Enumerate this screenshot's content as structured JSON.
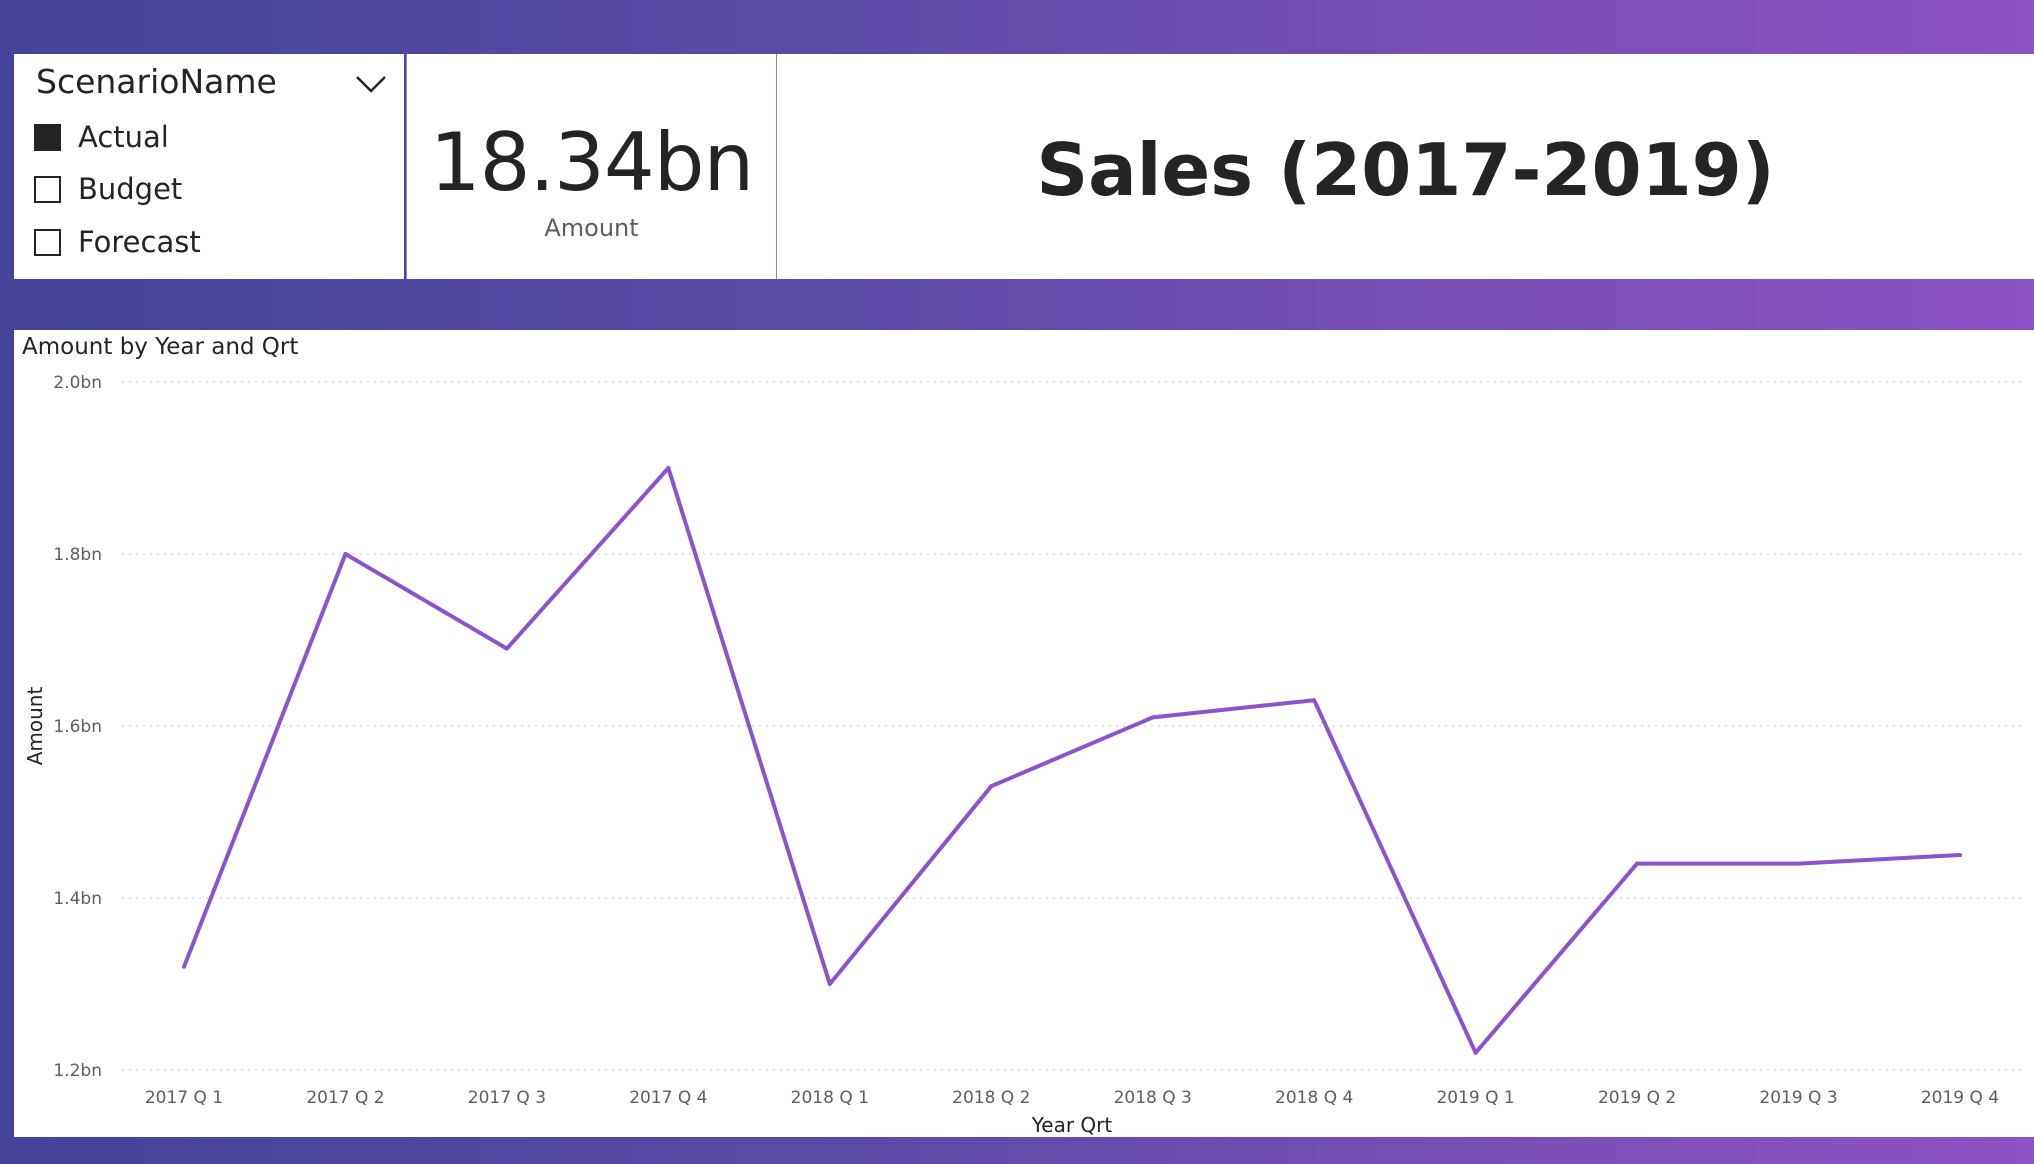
{
  "slicer": {
    "title": "ScenarioName",
    "icon": "chevron-down-icon",
    "items": [
      {
        "label": "Actual",
        "checked": true
      },
      {
        "label": "Budget",
        "checked": false
      },
      {
        "label": "Forecast",
        "checked": false
      }
    ]
  },
  "card": {
    "value": "18.34bn",
    "label": "Amount"
  },
  "header": {
    "title": "Sales (2017-2019)"
  },
  "colors": {
    "line": "#8a55cc",
    "background_start": "#45439a",
    "background_end": "#8d52c6",
    "text": "#252423",
    "gridline": "#d9d9d9"
  },
  "chart_data": {
    "type": "line",
    "title": "Amount by Year and Qrt",
    "xlabel": "Year Qrt",
    "ylabel": "Amount",
    "categories": [
      "2017 Q 1",
      "2017 Q 2",
      "2017 Q 3",
      "2017 Q 4",
      "2018 Q 1",
      "2018 Q 2",
      "2018 Q 3",
      "2018 Q 4",
      "2019 Q 1",
      "2019 Q 2",
      "2019 Q 3",
      "2019 Q 4"
    ],
    "series": [
      {
        "values": [
          1.32,
          1.8,
          1.69,
          1.9,
          1.3,
          1.53,
          1.61,
          1.63,
          1.22,
          1.44,
          1.44,
          1.45
        ]
      }
    ],
    "ylim": [
      1.2,
      2.0
    ],
    "yticks": [
      1.2,
      1.4,
      1.6,
      1.8,
      2.0
    ],
    "ytick_labels": [
      "1.2bn",
      "1.4bn",
      "1.6bn",
      "1.8bn",
      "2.0bn"
    ],
    "grid": true,
    "legend": "none"
  }
}
